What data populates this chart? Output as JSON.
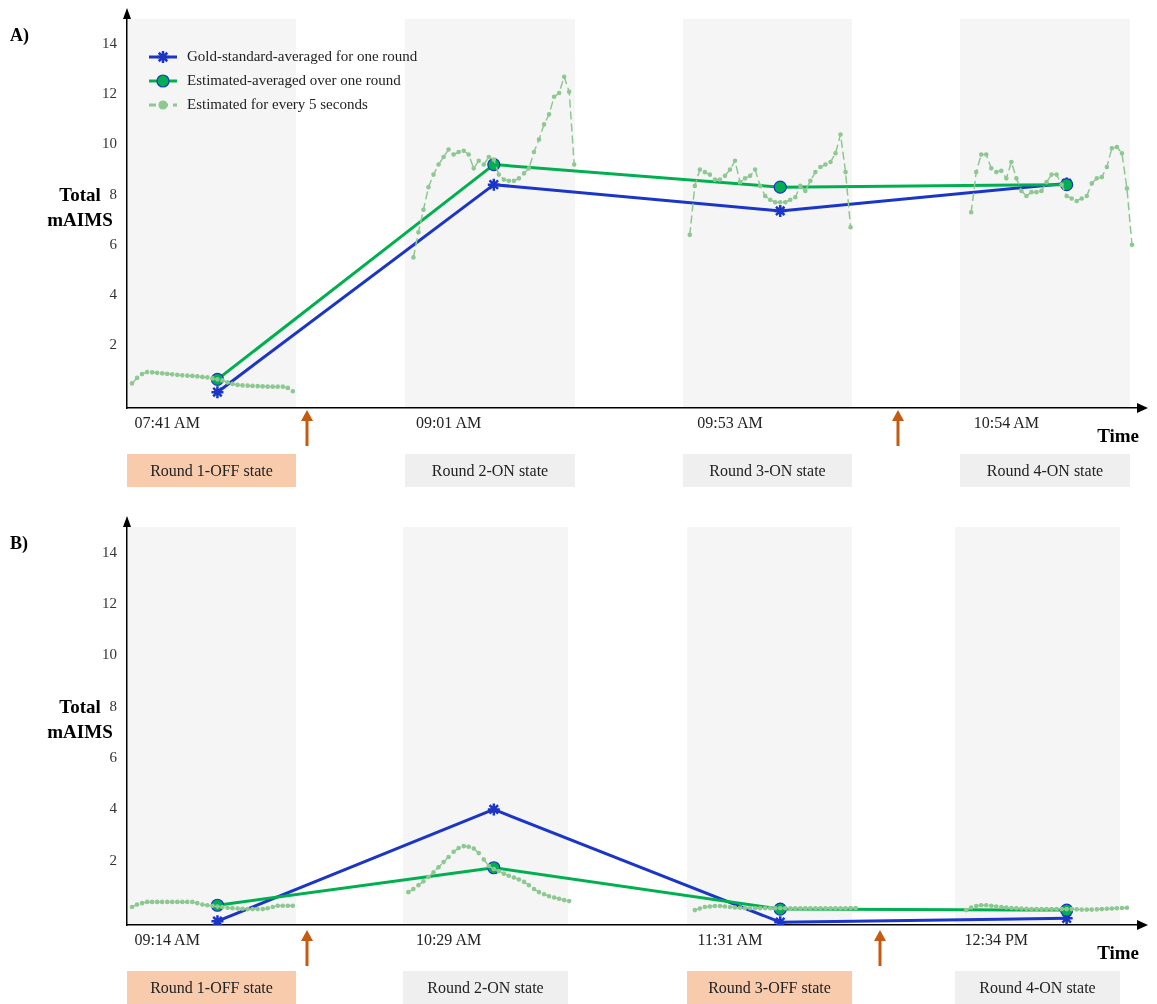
{
  "chart_data": [
    {
      "type": "line",
      "title": "A)",
      "xlabel": "Time",
      "ylabel": "Total mAIMS",
      "legend": "top left",
      "ylim": [
        -0.5,
        15
      ],
      "yticks": [
        2,
        4,
        6,
        8,
        10,
        12,
        14
      ],
      "annotations": [
        "Round 1-OFF state",
        "Round 2-ON state",
        "Round 3-ON state",
        "Round 4-ON state"
      ],
      "categories": [
        null,
        null,
        null,
        null,
        null,
        null,
        null,
        null,
        "07:41 AM",
        null,
        null,
        null,
        null,
        null,
        null,
        null,
        null,
        null,
        null,
        null,
        null,
        null,
        null,
        null,
        null,
        null,
        null,
        null,
        null,
        null,
        null,
        null,
        null,
        null,
        null,
        null,
        null,
        null,
        null,
        null,
        null,
        null,
        null,
        null,
        null,
        null,
        null,
        null,
        null,
        null,
        null,
        null,
        null,
        null,
        null,
        null,
        null,
        null,
        null,
        null,
        null,
        null,
        null,
        null,
        "09:01 AM",
        null,
        null,
        null,
        null,
        null,
        null,
        null,
        null,
        null,
        null,
        null,
        null,
        null,
        null,
        null,
        null,
        null,
        null,
        null,
        null,
        null,
        null,
        null,
        null,
        null,
        null,
        null,
        null,
        null,
        null,
        null,
        null,
        null,
        null,
        null,
        null,
        null,
        null,
        null,
        null,
        null,
        null,
        null,
        null,
        null,
        null,
        null,
        null,
        null,
        null,
        null,
        null,
        null,
        null,
        null,
        "09:53 AM",
        null,
        null,
        null,
        null,
        null,
        null,
        null,
        null,
        null,
        null,
        null,
        null,
        null,
        null,
        null,
        null,
        null,
        null,
        null,
        null,
        null,
        null,
        null,
        null,
        null,
        null,
        null,
        null,
        null,
        null,
        null,
        null,
        null,
        null,
        null,
        null,
        null,
        null,
        null,
        null,
        null,
        null,
        null,
        null,
        null,
        null,
        null,
        null,
        null,
        null,
        null,
        null,
        null,
        null,
        "10:54 AM",
        null,
        null,
        null,
        null,
        null,
        null,
        null,
        null,
        null,
        null,
        null,
        null,
        null,
        null,
        null,
        null,
        null,
        null,
        null,
        null,
        null,
        null,
        null,
        null,
        null,
        null
      ],
      "series": [
        {
          "name": "Gold-standard-averaged for one round",
          "color": "#1a35c8",
          "marker": "cross",
          "line_style": "solid",
          "values": [
            null,
            null,
            null,
            null,
            null,
            null,
            null,
            null,
            null,
            null,
            null,
            null,
            null,
            null,
            null,
            null,
            null,
            null,
            0.13,
            null,
            null,
            null,
            null,
            null,
            null,
            null,
            null,
            null,
            null,
            null,
            null,
            null,
            null,
            null,
            null,
            null,
            null,
            null,
            null,
            null,
            null,
            null,
            null,
            null,
            null,
            null,
            null,
            null,
            null,
            null,
            null,
            null,
            null,
            null,
            null,
            null,
            null,
            null,
            null,
            null,
            null,
            null,
            null,
            null,
            null,
            null,
            null,
            null,
            null,
            null,
            null,
            null,
            null,
            8.4,
            null,
            null,
            null,
            null,
            null,
            null,
            null,
            null,
            null,
            null,
            null,
            null,
            null,
            null,
            null,
            null,
            null,
            null,
            null,
            null,
            null,
            null,
            null,
            null,
            null,
            null,
            null,
            null,
            null,
            null,
            null,
            null,
            null,
            null,
            null,
            null,
            null,
            null,
            null,
            null,
            null,
            null,
            null,
            null,
            null,
            null,
            null,
            null,
            null,
            null,
            null,
            null,
            null,
            null,
            null,
            null,
            7.35,
            null,
            null,
            null,
            null,
            null,
            null,
            null,
            null,
            null,
            null,
            null,
            null,
            null,
            null,
            null,
            null,
            null,
            null,
            null,
            null,
            null,
            null,
            null,
            null,
            null,
            null,
            null,
            null,
            null,
            null,
            null,
            null,
            null,
            null,
            null,
            null,
            null,
            null,
            null,
            null,
            null,
            null,
            null,
            null,
            null,
            null,
            null,
            null,
            null,
            null,
            null,
            null,
            null,
            null,
            null,
            null,
            8.45,
            null,
            null,
            null,
            null,
            null,
            null,
            null,
            null,
            null,
            null,
            null,
            null,
            null,
            null
          ]
        },
        {
          "name": "Estimated-averaged over one round",
          "color": "#00b050",
          "marker": "circle",
          "line_style": "solid",
          "values": [
            null,
            null,
            null,
            null,
            null,
            null,
            null,
            null,
            null,
            null,
            null,
            null,
            null,
            null,
            null,
            null,
            null,
            null,
            0.64,
            null,
            null,
            null,
            null,
            null,
            null,
            null,
            null,
            null,
            null,
            null,
            null,
            null,
            null,
            null,
            null,
            null,
            null,
            null,
            null,
            null,
            null,
            null,
            null,
            null,
            null,
            null,
            null,
            null,
            null,
            null,
            null,
            null,
            null,
            null,
            null,
            null,
            null,
            null,
            null,
            null,
            null,
            null,
            null,
            null,
            null,
            null,
            null,
            null,
            null,
            null,
            null,
            null,
            null,
            9.2,
            null,
            null,
            null,
            null,
            null,
            null,
            null,
            null,
            null,
            null,
            null,
            null,
            null,
            null,
            null,
            null,
            null,
            null,
            null,
            null,
            null,
            null,
            null,
            null,
            null,
            null,
            null,
            null,
            null,
            null,
            null,
            null,
            null,
            null,
            null,
            null,
            null,
            null,
            null,
            null,
            null,
            null,
            null,
            null,
            null,
            null,
            null,
            null,
            null,
            null,
            null,
            null,
            null,
            null,
            null,
            null,
            8.3,
            null,
            null,
            null,
            null,
            null,
            null,
            null,
            null,
            null,
            null,
            null,
            null,
            null,
            null,
            null,
            null,
            null,
            null,
            null,
            null,
            null,
            null,
            null,
            null,
            null,
            null,
            null,
            null,
            null,
            null,
            null,
            null,
            null,
            null,
            null,
            null,
            null,
            null,
            null,
            null,
            null,
            null,
            null,
            null,
            null,
            null,
            null,
            null,
            null,
            null,
            null,
            null,
            null,
            null,
            null,
            null,
            8.4,
            null,
            null,
            null,
            null,
            null,
            null,
            null,
            null,
            null,
            null,
            null,
            null,
            null,
            null
          ]
        },
        {
          "name": "Estimated for every 5 seconds",
          "color": "#8dc891",
          "marker": "circle",
          "line_style": "dashed",
          "values": [
            null,
            0.48,
            0.7,
            0.85,
            0.93,
            0.92,
            0.9,
            0.88,
            0.86,
            0.84,
            0.82,
            0.8,
            0.79,
            0.78,
            0.76,
            0.74,
            0.72,
            0.68,
            0.64,
            0.6,
            0.52,
            0.46,
            0.42,
            0.4,
            0.39,
            0.38,
            0.37,
            0.36,
            0.35,
            0.35,
            0.35,
            0.35,
            0.3,
            0.17,
            null,
            null,
            null,
            null,
            null,
            null,
            null,
            null,
            null,
            null,
            null,
            null,
            null,
            null,
            null,
            null,
            null,
            null,
            null,
            null,
            null,
            null,
            null,
            5.5,
            6.5,
            7.4,
            8.3,
            8.8,
            9.2,
            9.5,
            9.8,
            9.6,
            9.7,
            9.75,
            9.6,
            9.05,
            9.35,
            9.2,
            9.5,
            9.4,
            8.8,
            8.6,
            8.55,
            8.55,
            8.65,
            8.85,
            9.05,
            9.7,
            10.2,
            10.8,
            11.2,
            11.9,
            12.05,
            12.7,
            12.1,
            9.2,
            null,
            null,
            null,
            null,
            null,
            null,
            null,
            null,
            null,
            null,
            null,
            null,
            null,
            null,
            null,
            null,
            null,
            null,
            null,
            null,
            null,
            null,
            6.4,
            8.35,
            9.0,
            8.9,
            8.8,
            8.6,
            8.6,
            8.75,
            9.0,
            9.35,
            8.5,
            8.65,
            8.75,
            9.0,
            8.35,
            7.95,
            7.8,
            7.7,
            7.7,
            7.7,
            7.8,
            7.9,
            8.35,
            8.15,
            8.55,
            8.9,
            9.1,
            9.2,
            9.3,
            9.65,
            10.4,
            8.9,
            6.7,
            null,
            null,
            null,
            null,
            null,
            null,
            null,
            null,
            null,
            null,
            null,
            null,
            null,
            null,
            null,
            null,
            null,
            null,
            null,
            null,
            null,
            null,
            null,
            7.3,
            8.9,
            9.6,
            9.6,
            9.05,
            8.9,
            8.95,
            8.65,
            9.3,
            8.65,
            8.15,
            7.95,
            8.1,
            8.1,
            8.15,
            8.5,
            8.8,
            8.8,
            8.4,
            7.95,
            7.85,
            7.75,
            7.85,
            7.95,
            8.45,
            8.65,
            8.7,
            9.1,
            9.85,
            9.9,
            9.65,
            8.25,
            6.0,
            null
          ]
        }
      ]
    },
    {
      "type": "line",
      "title": "B)",
      "xlabel": "Time",
      "ylabel": "Total mAIMS",
      "ylim": [
        -0.5,
        15
      ],
      "yticks": [
        2,
        4,
        6,
        8,
        10,
        12,
        14
      ],
      "annotations": [
        "Round 1-OFF state",
        "Round 2-ON state",
        "Round 3-OFF state",
        "Round 4-ON state"
      ],
      "categories": [
        null,
        null,
        null,
        null,
        null,
        null,
        null,
        null,
        "09:14 AM",
        null,
        null,
        null,
        null,
        null,
        null,
        null,
        null,
        null,
        null,
        null,
        null,
        null,
        null,
        null,
        null,
        null,
        null,
        null,
        null,
        null,
        null,
        null,
        null,
        null,
        null,
        null,
        null,
        null,
        null,
        null,
        null,
        null,
        null,
        null,
        null,
        null,
        null,
        null,
        null,
        null,
        null,
        null,
        null,
        null,
        null,
        null,
        null,
        null,
        null,
        null,
        null,
        null,
        null,
        null,
        "10:29 AM",
        null,
        null,
        null,
        null,
        null,
        null,
        null,
        null,
        null,
        null,
        null,
        null,
        null,
        null,
        null,
        null,
        null,
        null,
        null,
        null,
        null,
        null,
        null,
        null,
        null,
        null,
        null,
        null,
        null,
        null,
        null,
        null,
        null,
        null,
        null,
        null,
        null,
        null,
        null,
        null,
        null,
        null,
        null,
        null,
        null,
        null,
        null,
        null,
        null,
        null,
        null,
        null,
        null,
        null,
        null,
        "11:31 AM",
        null,
        null,
        null,
        null,
        null,
        null,
        null,
        null,
        null,
        null,
        null,
        null,
        null,
        null,
        null,
        null,
        null,
        null,
        null,
        null,
        null,
        null,
        null,
        null,
        null,
        null,
        null,
        null,
        null,
        null,
        null,
        null,
        null,
        null,
        null,
        null,
        null,
        null,
        null,
        null,
        null,
        null,
        null,
        null,
        null,
        null,
        null,
        null,
        null,
        null,
        null,
        null,
        "12:34 PM",
        null,
        null,
        null,
        null,
        null,
        null,
        null,
        null,
        null,
        null,
        null,
        null,
        null,
        null,
        null,
        null,
        null,
        null,
        null,
        null,
        null,
        null,
        null,
        null,
        null,
        null,
        null,
        null
      ],
      "series": [
        {
          "color": "#1a35c8",
          "marker": "cross",
          "line_style": "solid",
          "values": [
            null,
            null,
            null,
            null,
            null,
            null,
            null,
            null,
            null,
            null,
            null,
            null,
            null,
            null,
            null,
            null,
            null,
            null,
            -0.35,
            null,
            null,
            null,
            null,
            null,
            null,
            null,
            null,
            null,
            null,
            null,
            null,
            null,
            null,
            null,
            null,
            null,
            null,
            null,
            null,
            null,
            null,
            null,
            null,
            null,
            null,
            null,
            null,
            null,
            null,
            null,
            null,
            null,
            null,
            null,
            null,
            null,
            null,
            null,
            null,
            null,
            null,
            null,
            null,
            null,
            null,
            null,
            null,
            null,
            null,
            null,
            null,
            null,
            null,
            4.0,
            null,
            null,
            null,
            null,
            null,
            null,
            null,
            null,
            null,
            null,
            null,
            null,
            null,
            null,
            null,
            null,
            null,
            null,
            null,
            null,
            null,
            null,
            null,
            null,
            null,
            null,
            null,
            null,
            null,
            null,
            null,
            null,
            null,
            null,
            null,
            null,
            null,
            null,
            null,
            null,
            null,
            null,
            null,
            null,
            null,
            null,
            null,
            null,
            null,
            null,
            null,
            null,
            null,
            null,
            null,
            null,
            -0.39,
            null,
            null,
            null,
            null,
            null,
            null,
            null,
            null,
            null,
            null,
            null,
            null,
            null,
            null,
            null,
            null,
            null,
            null,
            null,
            null,
            null,
            null,
            null,
            null,
            null,
            null,
            null,
            null,
            null,
            null,
            null,
            null,
            null,
            null,
            null,
            null,
            null,
            null,
            null,
            null,
            null,
            null,
            null,
            null,
            null,
            null,
            null,
            null,
            null,
            null,
            null,
            null,
            null,
            null,
            null,
            null,
            -0.24,
            null,
            null,
            null,
            null,
            null,
            null,
            null,
            null,
            null,
            null,
            null,
            null,
            null,
            null
          ]
        },
        {
          "color": "#00b050",
          "marker": "circle",
          "line_style": "solid",
          "values": [
            null,
            null,
            null,
            null,
            null,
            null,
            null,
            null,
            null,
            null,
            null,
            null,
            null,
            null,
            null,
            null,
            null,
            null,
            0.27,
            null,
            null,
            null,
            null,
            null,
            null,
            null,
            null,
            null,
            null,
            null,
            null,
            null,
            null,
            null,
            null,
            null,
            null,
            null,
            null,
            null,
            null,
            null,
            null,
            null,
            null,
            null,
            null,
            null,
            null,
            null,
            null,
            null,
            null,
            null,
            null,
            null,
            null,
            null,
            null,
            null,
            null,
            null,
            null,
            null,
            null,
            null,
            null,
            null,
            null,
            null,
            null,
            null,
            null,
            1.73,
            null,
            null,
            null,
            null,
            null,
            null,
            null,
            null,
            null,
            null,
            null,
            null,
            null,
            null,
            null,
            null,
            null,
            null,
            null,
            null,
            null,
            null,
            null,
            null,
            null,
            null,
            null,
            null,
            null,
            null,
            null,
            null,
            null,
            null,
            null,
            null,
            null,
            null,
            null,
            null,
            null,
            null,
            null,
            null,
            null,
            null,
            null,
            null,
            null,
            null,
            null,
            null,
            null,
            null,
            null,
            null,
            0.12,
            null,
            null,
            null,
            null,
            null,
            null,
            null,
            null,
            null,
            null,
            null,
            null,
            null,
            null,
            null,
            null,
            null,
            null,
            null,
            null,
            null,
            null,
            null,
            null,
            null,
            null,
            null,
            null,
            null,
            null,
            null,
            null,
            null,
            null,
            null,
            null,
            null,
            null,
            null,
            null,
            null,
            null,
            null,
            null,
            null,
            null,
            null,
            null,
            null,
            null,
            null,
            null,
            null,
            null,
            null,
            null,
            0.08,
            null,
            null,
            null,
            null,
            null,
            null,
            null,
            null,
            null,
            null,
            null,
            null,
            null,
            null
          ]
        },
        {
          "color": "#8dc891",
          "marker": "circle",
          "line_style": "dashed",
          "values": [
            null,
            0.2,
            0.3,
            0.35,
            0.4,
            0.4,
            0.4,
            0.4,
            0.4,
            0.4,
            0.4,
            0.4,
            0.4,
            0.4,
            0.35,
            0.3,
            0.27,
            0.25,
            0.22,
            0.2,
            0.17,
            0.15,
            0.14,
            0.13,
            0.12,
            0.12,
            0.12,
            0.12,
            0.15,
            0.2,
            0.25,
            0.25,
            0.25,
            0.25,
            null,
            null,
            null,
            null,
            null,
            null,
            null,
            null,
            null,
            null,
            null,
            null,
            null,
            null,
            null,
            null,
            null,
            null,
            null,
            null,
            null,
            null,
            0.78,
            0.9,
            1.05,
            1.2,
            1.37,
            1.55,
            1.75,
            1.95,
            2.15,
            2.35,
            2.5,
            2.57,
            2.55,
            2.48,
            2.3,
            2.05,
            1.8,
            1.68,
            1.6,
            1.5,
            1.42,
            1.35,
            1.27,
            1.18,
            1.05,
            0.9,
            0.78,
            0.7,
            0.62,
            0.57,
            0.52,
            0.47,
            0.43,
            null,
            null,
            null,
            null,
            null,
            null,
            null,
            null,
            null,
            null,
            null,
            null,
            null,
            null,
            null,
            null,
            null,
            null,
            null,
            null,
            null,
            null,
            null,
            null,
            0.08,
            0.14,
            0.2,
            0.22,
            0.24,
            0.24,
            0.22,
            0.2,
            0.18,
            0.17,
            0.16,
            0.15,
            0.15,
            0.15,
            0.15,
            0.15,
            0.15,
            0.15,
            0.15,
            0.15,
            0.15,
            0.15,
            0.15,
            0.15,
            0.15,
            0.15,
            0.15,
            0.15,
            0.15,
            0.15,
            0.15,
            0.16,
            0.16,
            null,
            null,
            null,
            null,
            null,
            null,
            null,
            null,
            null,
            null,
            null,
            null,
            null,
            null,
            null,
            null,
            null,
            null,
            null,
            null,
            null,
            0.08,
            0.18,
            0.24,
            0.27,
            0.27,
            0.25,
            0.22,
            0.2,
            0.18,
            0.16,
            0.15,
            0.14,
            0.13,
            0.12,
            0.12,
            0.12,
            0.12,
            0.12,
            0.12,
            0.12,
            0.12,
            0.12,
            0.11,
            0.1,
            0.1,
            0.1,
            0.11,
            0.12,
            0.13,
            0.14,
            0.15,
            0.16,
            0.17,
            null,
            null
          ]
        }
      ]
    }
  ]
}
